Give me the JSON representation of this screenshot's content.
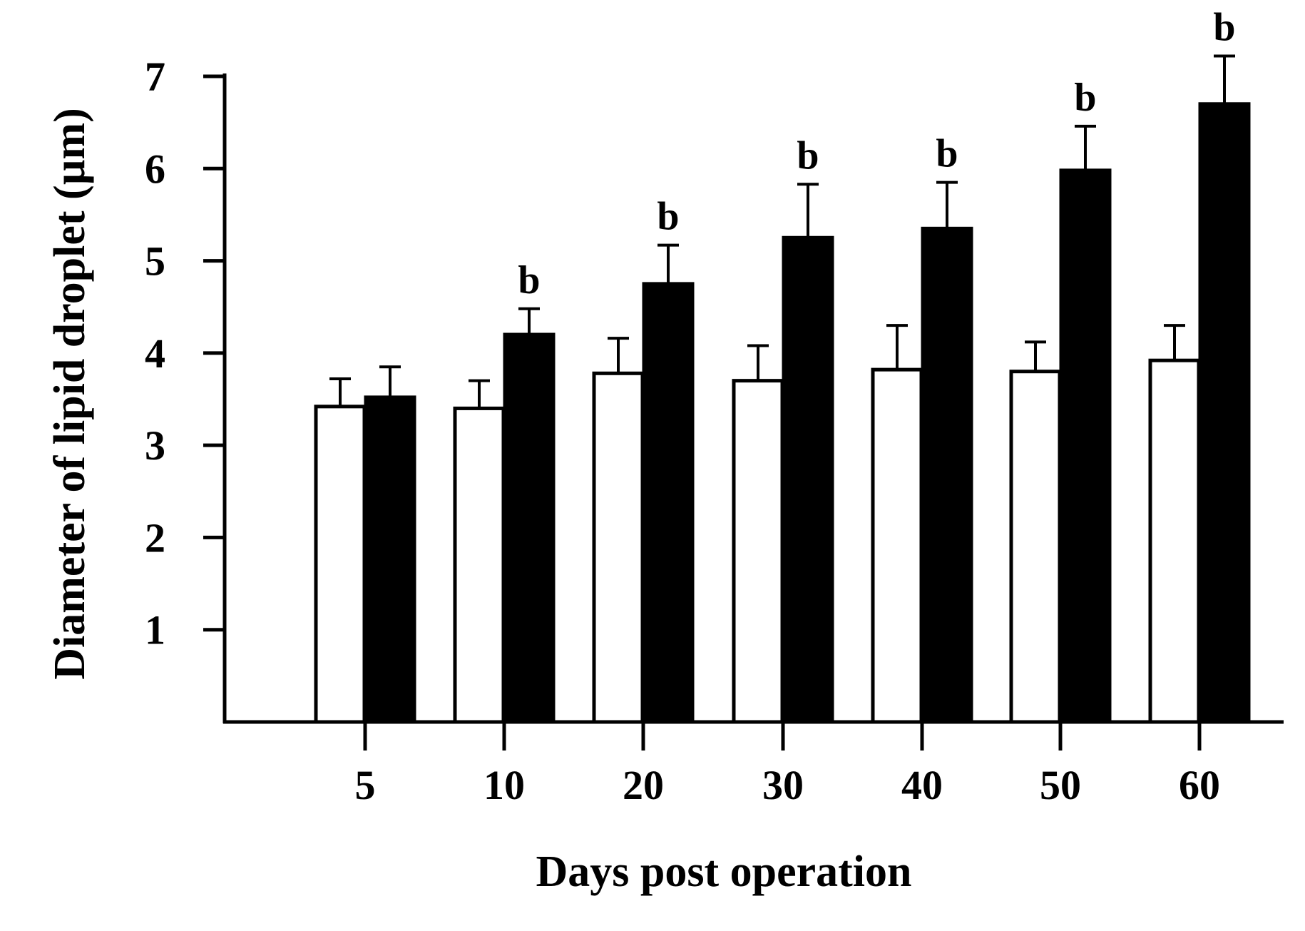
{
  "chart_data": {
    "type": "bar",
    "title": "",
    "xlabel": "Days post operation",
    "ylabel": "Diameter of lipid droplet (µm)",
    "ylim": [
      0,
      7
    ],
    "yticks": [
      "1",
      "2",
      "3",
      "4",
      "5",
      "6",
      "7"
    ],
    "categories": [
      "5",
      "10",
      "20",
      "30",
      "40",
      "50",
      "60"
    ],
    "grid": false,
    "legend": "none",
    "series": [
      {
        "fill": "#ffffff",
        "values": [
          3.42,
          3.4,
          3.78,
          3.7,
          3.82,
          3.8,
          3.92
        ],
        "errors": [
          0.3,
          0.3,
          0.38,
          0.38,
          0.48,
          0.32,
          0.38
        ],
        "annotations": [
          "",
          "",
          "",
          "",
          "",
          "",
          ""
        ]
      },
      {
        "fill": "#000000",
        "values": [
          3.52,
          4.2,
          4.75,
          5.25,
          5.35,
          5.98,
          6.7
        ],
        "errors": [
          0.33,
          0.28,
          0.42,
          0.58,
          0.5,
          0.48,
          0.52
        ],
        "annotations": [
          "",
          "b",
          "b",
          "b",
          "b",
          "b",
          "b"
        ]
      }
    ]
  }
}
